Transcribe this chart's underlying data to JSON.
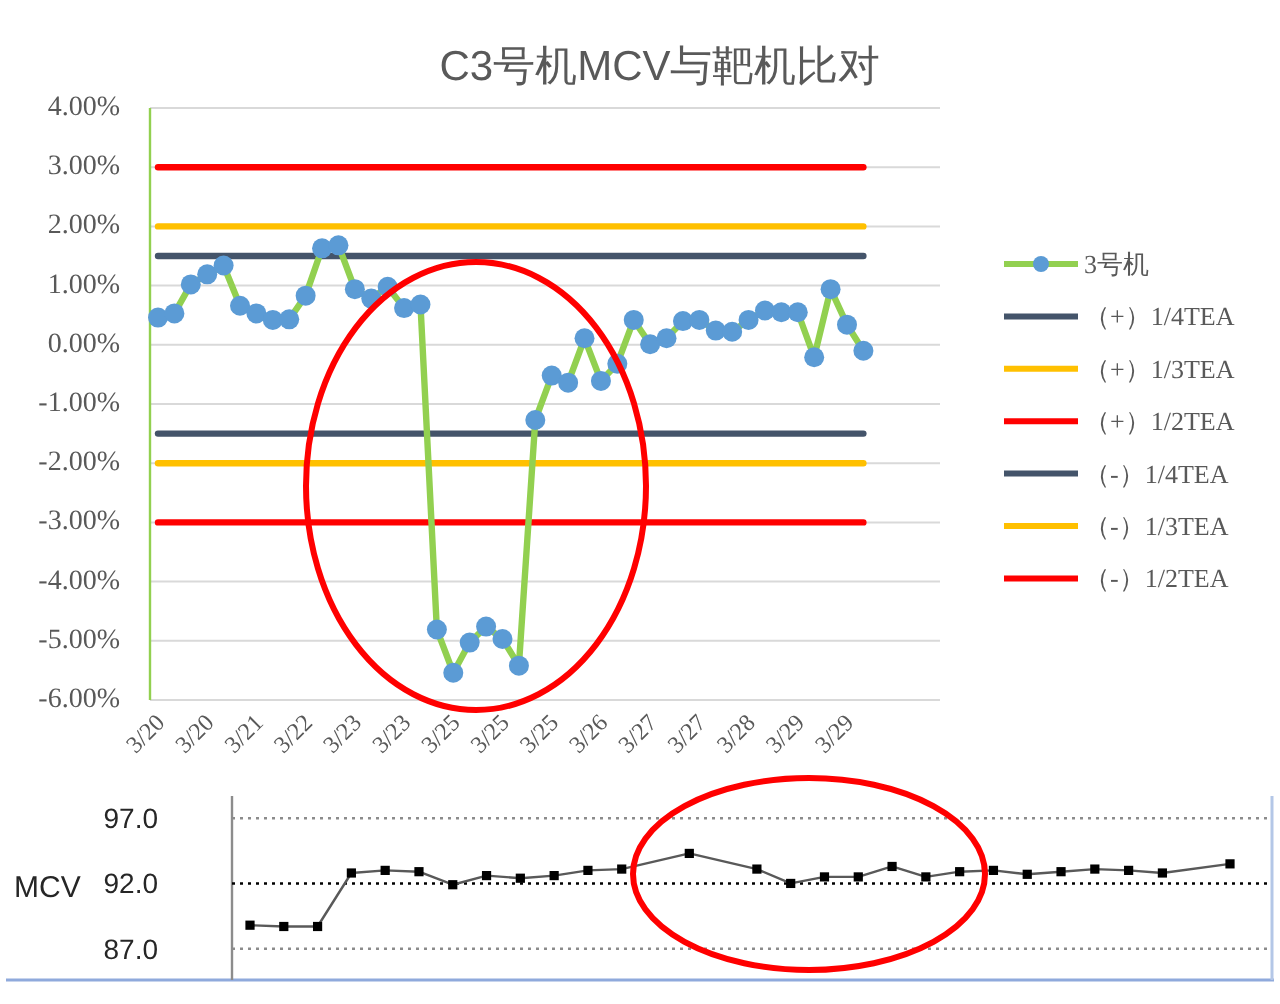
{
  "chart_data": [
    {
      "type": "line",
      "title": "C3号机MCV与靶机比对",
      "categories": [
        "3/20",
        null,
        null,
        "3/20",
        null,
        null,
        "3/21",
        null,
        null,
        "3/22",
        null,
        null,
        "3/23",
        null,
        null,
        "3/23",
        null,
        null,
        "3/25",
        null,
        null,
        "3/25",
        null,
        null,
        "3/25",
        null,
        null,
        "3/26",
        null,
        null,
        "3/27",
        null,
        null,
        "3/27",
        null,
        null,
        "3/28",
        null,
        null,
        "3/29",
        null,
        null,
        "3/29",
        null
      ],
      "series": [
        {
          "name": "3号机",
          "color": "#92d050",
          "colors": [
            "#5b9bd5",
            "#5b9bd5",
            "#5b9bd5",
            "#5b9bd5",
            "#5b9bd5",
            "#5b9bd5",
            "#5b9bd5",
            "#5b9bd5",
            "#5b9bd5",
            "#5b9bd5",
            "#5b9bd5",
            "#5b9bd5",
            "#5b9bd5",
            "#5b9bd5",
            "#5b9bd5",
            "#5b9bd5",
            "#5b9bd5",
            "#5b9bd5",
            "#5b9bd5",
            "#5b9bd5",
            "#5b9bd5",
            "#5b9bd5",
            "#5b9bd5",
            "#5b9bd5",
            "#5b9bd5",
            "#5b9bd5",
            "#5b9bd5",
            "#5b9bd5",
            "#5b9bd5",
            "#5b9bd5",
            "#5b9bd5",
            "#5b9bd5",
            "#5b9bd5",
            "#5b9bd5",
            "#5b9bd5",
            "#5b9bd5",
            "#5b9bd5",
            "#5b9bd5",
            "#5b9bd5",
            "#5b9bd5",
            "#5b9bd5",
            "#5b9bd5",
            "#5b9bd5",
            "#5b9bd5"
          ],
          "values": [
            0.46,
            0.53,
            1.02,
            1.19,
            1.34,
            0.66,
            0.53,
            0.42,
            0.43,
            0.83,
            1.63,
            1.68,
            0.94,
            0.78,
            0.98,
            0.62,
            0.68,
            -4.81,
            -5.54,
            -5.03,
            -4.76,
            -4.97,
            -5.42,
            -1.27,
            -0.52,
            -0.64,
            0.11,
            -0.61,
            -0.32,
            0.42,
            0.01,
            0.11,
            0.4,
            0.42,
            0.24,
            0.22,
            0.42,
            0.58,
            0.55,
            0.55,
            -0.21,
            0.94,
            0.34,
            -0.1
          ]
        },
        {
          "name": "（+）1/4TEA",
          "color": "#44546a",
          "marker": "none",
          "values": [
            1.5,
            1.5,
            1.5,
            1.5,
            1.5,
            1.5,
            1.5,
            1.5,
            1.5,
            1.5,
            1.5,
            1.5,
            1.5,
            1.5,
            1.5,
            1.5,
            1.5,
            1.5,
            1.5,
            1.5,
            1.5,
            1.5,
            1.5,
            1.5,
            1.5,
            1.5,
            1.5,
            1.5,
            1.5,
            1.5,
            1.5,
            1.5,
            1.5,
            1.5,
            1.5,
            1.5,
            1.5,
            1.5,
            1.5,
            1.5,
            1.5,
            1.5,
            1.5,
            1.5
          ]
        },
        {
          "name": "（+）1/3TEA",
          "color": "#ffc000",
          "marker": "none",
          "values": [
            2,
            2,
            2,
            2,
            2,
            2,
            2,
            2,
            2,
            2,
            2,
            2,
            2,
            2,
            2,
            2,
            2,
            2,
            2,
            2,
            2,
            2,
            2,
            2,
            2,
            2,
            2,
            2,
            2,
            2,
            2,
            2,
            2,
            2,
            2,
            2,
            2,
            2,
            2,
            2,
            2,
            2,
            2,
            2
          ]
        },
        {
          "name": "（+）1/2TEA",
          "color": "#ff0000",
          "marker": "none",
          "values": [
            3,
            3,
            3,
            3,
            3,
            3,
            3,
            3,
            3,
            3,
            3,
            3,
            3,
            3,
            3,
            3,
            3,
            3,
            3,
            3,
            3,
            3,
            3,
            3,
            3,
            3,
            3,
            3,
            3,
            3,
            3,
            3,
            3,
            3,
            3,
            3,
            3,
            3,
            3,
            3,
            3,
            3,
            3,
            3
          ]
        },
        {
          "name": "（-）1/4TEA",
          "color": "#44546a",
          "marker": "none",
          "values": [
            -1.5,
            -1.5,
            -1.5,
            -1.5,
            -1.5,
            -1.5,
            -1.5,
            -1.5,
            -1.5,
            -1.5,
            -1.5,
            -1.5,
            -1.5,
            -1.5,
            -1.5,
            -1.5,
            -1.5,
            -1.5,
            -1.5,
            -1.5,
            -1.5,
            -1.5,
            -1.5,
            -1.5,
            -1.5,
            -1.5,
            -1.5,
            -1.5,
            -1.5,
            -1.5,
            -1.5,
            -1.5,
            -1.5,
            -1.5,
            -1.5,
            -1.5,
            -1.5,
            -1.5,
            -1.5,
            -1.5,
            -1.5,
            -1.5,
            -1.5,
            -1.5
          ]
        },
        {
          "name": "（-）1/3TEA",
          "color": "#ffc000",
          "marker": "none",
          "values": [
            -2,
            -2,
            -2,
            -2,
            -2,
            -2,
            -2,
            -2,
            -2,
            -2,
            -2,
            -2,
            -2,
            -2,
            -2,
            -2,
            -2,
            -2,
            -2,
            -2,
            -2,
            -2,
            -2,
            -2,
            -2,
            -2,
            -2,
            -2,
            -2,
            -2,
            -2,
            -2,
            -2,
            -2,
            -2,
            -2,
            -2,
            -2,
            -2,
            -2,
            -2,
            -2,
            -2,
            -2
          ]
        },
        {
          "name": "（-）1/2TEA",
          "color": "#ff0000",
          "marker": "none",
          "values": [
            -3,
            -3,
            -3,
            -3,
            -3,
            -3,
            -3,
            -3,
            -3,
            -3,
            -3,
            -3,
            -3,
            -3,
            -3,
            -3,
            -3,
            -3,
            -3,
            -3,
            -3,
            -3,
            -3,
            -3,
            -3,
            -3,
            -3,
            -3,
            -3,
            -3,
            -3,
            -3,
            -3,
            -3,
            -3,
            -3,
            -3,
            -3,
            -3,
            -3,
            -3,
            -3,
            -3,
            -3
          ]
        }
      ],
      "marker": "circle",
      "legend": "right",
      "grid": "y",
      "ylim": [
        -6,
        4
      ],
      "yticks": [
        {
          "value": 4,
          "label": "4.00%"
        },
        {
          "value": 3,
          "label": "3.00%"
        },
        {
          "value": 2,
          "label": "2.00%"
        },
        {
          "value": 1,
          "label": "1.00%"
        },
        {
          "value": 0,
          "label": "0.00%"
        },
        {
          "value": -1,
          "label": "-1.00%"
        },
        {
          "value": -2,
          "label": "-2.00%"
        },
        {
          "value": -3,
          "label": "-3.00%"
        },
        {
          "value": -4,
          "label": "-4.00%"
        },
        {
          "value": -5,
          "label": "-5.00%"
        },
        {
          "value": -6,
          "label": "-6.00%"
        }
      ]
    },
    {
      "type": "line",
      "ylabel": "MCV",
      "categories": [
        null,
        null,
        null,
        null,
        null,
        null,
        null,
        null,
        null,
        null,
        null,
        null,
        null,
        null,
        null,
        null,
        null,
        null,
        null,
        null,
        null,
        null,
        null,
        null,
        null,
        null,
        null,
        null,
        null,
        null
      ],
      "series": [
        {
          "color": "#595959",
          "colors": [
            "#000000",
            "#000000",
            "#000000",
            "#000000",
            "#000000",
            "#000000",
            "#000000",
            "#000000",
            "#000000",
            "#000000",
            "#000000",
            "#000000",
            null,
            "#000000",
            null,
            "#000000",
            "#000000",
            "#000000",
            "#000000",
            "#000000",
            "#000000",
            "#000000",
            "#000000",
            "#000000",
            "#000000",
            "#000000",
            "#000000",
            "#000000",
            null,
            "#000000"
          ],
          "values": [
            88.8,
            88.7,
            88.7,
            92.8,
            93.0,
            92.9,
            91.9,
            92.6,
            92.4,
            92.6,
            93.0,
            93.1,
            null,
            94.3,
            null,
            93.1,
            92.0,
            92.5,
            92.5,
            93.3,
            92.5,
            92.9,
            93.0,
            92.7,
            92.9,
            93.1,
            93.0,
            92.8,
            null,
            93.5
          ]
        }
      ],
      "marker": "square",
      "ylim": [
        84.6,
        98.7
      ],
      "yticks": [
        {
          "value": 97,
          "label": "97.0"
        },
        {
          "value": 92,
          "label": "92.0"
        },
        {
          "value": 87,
          "label": "87.0"
        }
      ],
      "ref_lines": [
        {
          "axis": "y",
          "value": 97,
          "color": "#8c8c8c",
          "line_style": "dotted"
        },
        {
          "axis": "y",
          "value": 92,
          "color": "#000000",
          "line_style": "dotted"
        },
        {
          "axis": "y",
          "value": 87,
          "color": "#8c8c8c",
          "line_style": "dotted"
        }
      ]
    }
  ]
}
